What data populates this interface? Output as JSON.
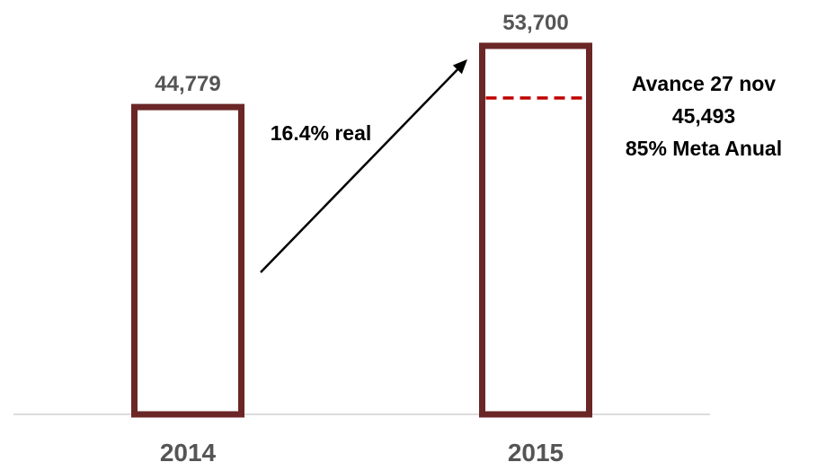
{
  "chart_data": {
    "type": "bar",
    "categories": [
      "2014",
      "2015"
    ],
    "values": [
      44779,
      53700
    ],
    "value_labels": [
      "44,779",
      "53,700"
    ],
    "title": "",
    "xlabel": "",
    "ylabel": "",
    "ylim": [
      0,
      53700
    ],
    "grid": false,
    "colors": {
      "bar_outline": "#6b2626",
      "bar_fill": "#ffffff",
      "target_line": "#c00000",
      "label_text": "#555555",
      "baseline": "#d0d0d0"
    },
    "annotations": {
      "growth": {
        "label": "16.4% real",
        "from_category": "2014",
        "to_category": "2015"
      },
      "progress": {
        "category": "2015",
        "value": 45493,
        "percent_of_target": 85,
        "lines": [
          "Avance 27 nov",
          "45,493",
          "85% Meta Anual"
        ]
      }
    }
  }
}
